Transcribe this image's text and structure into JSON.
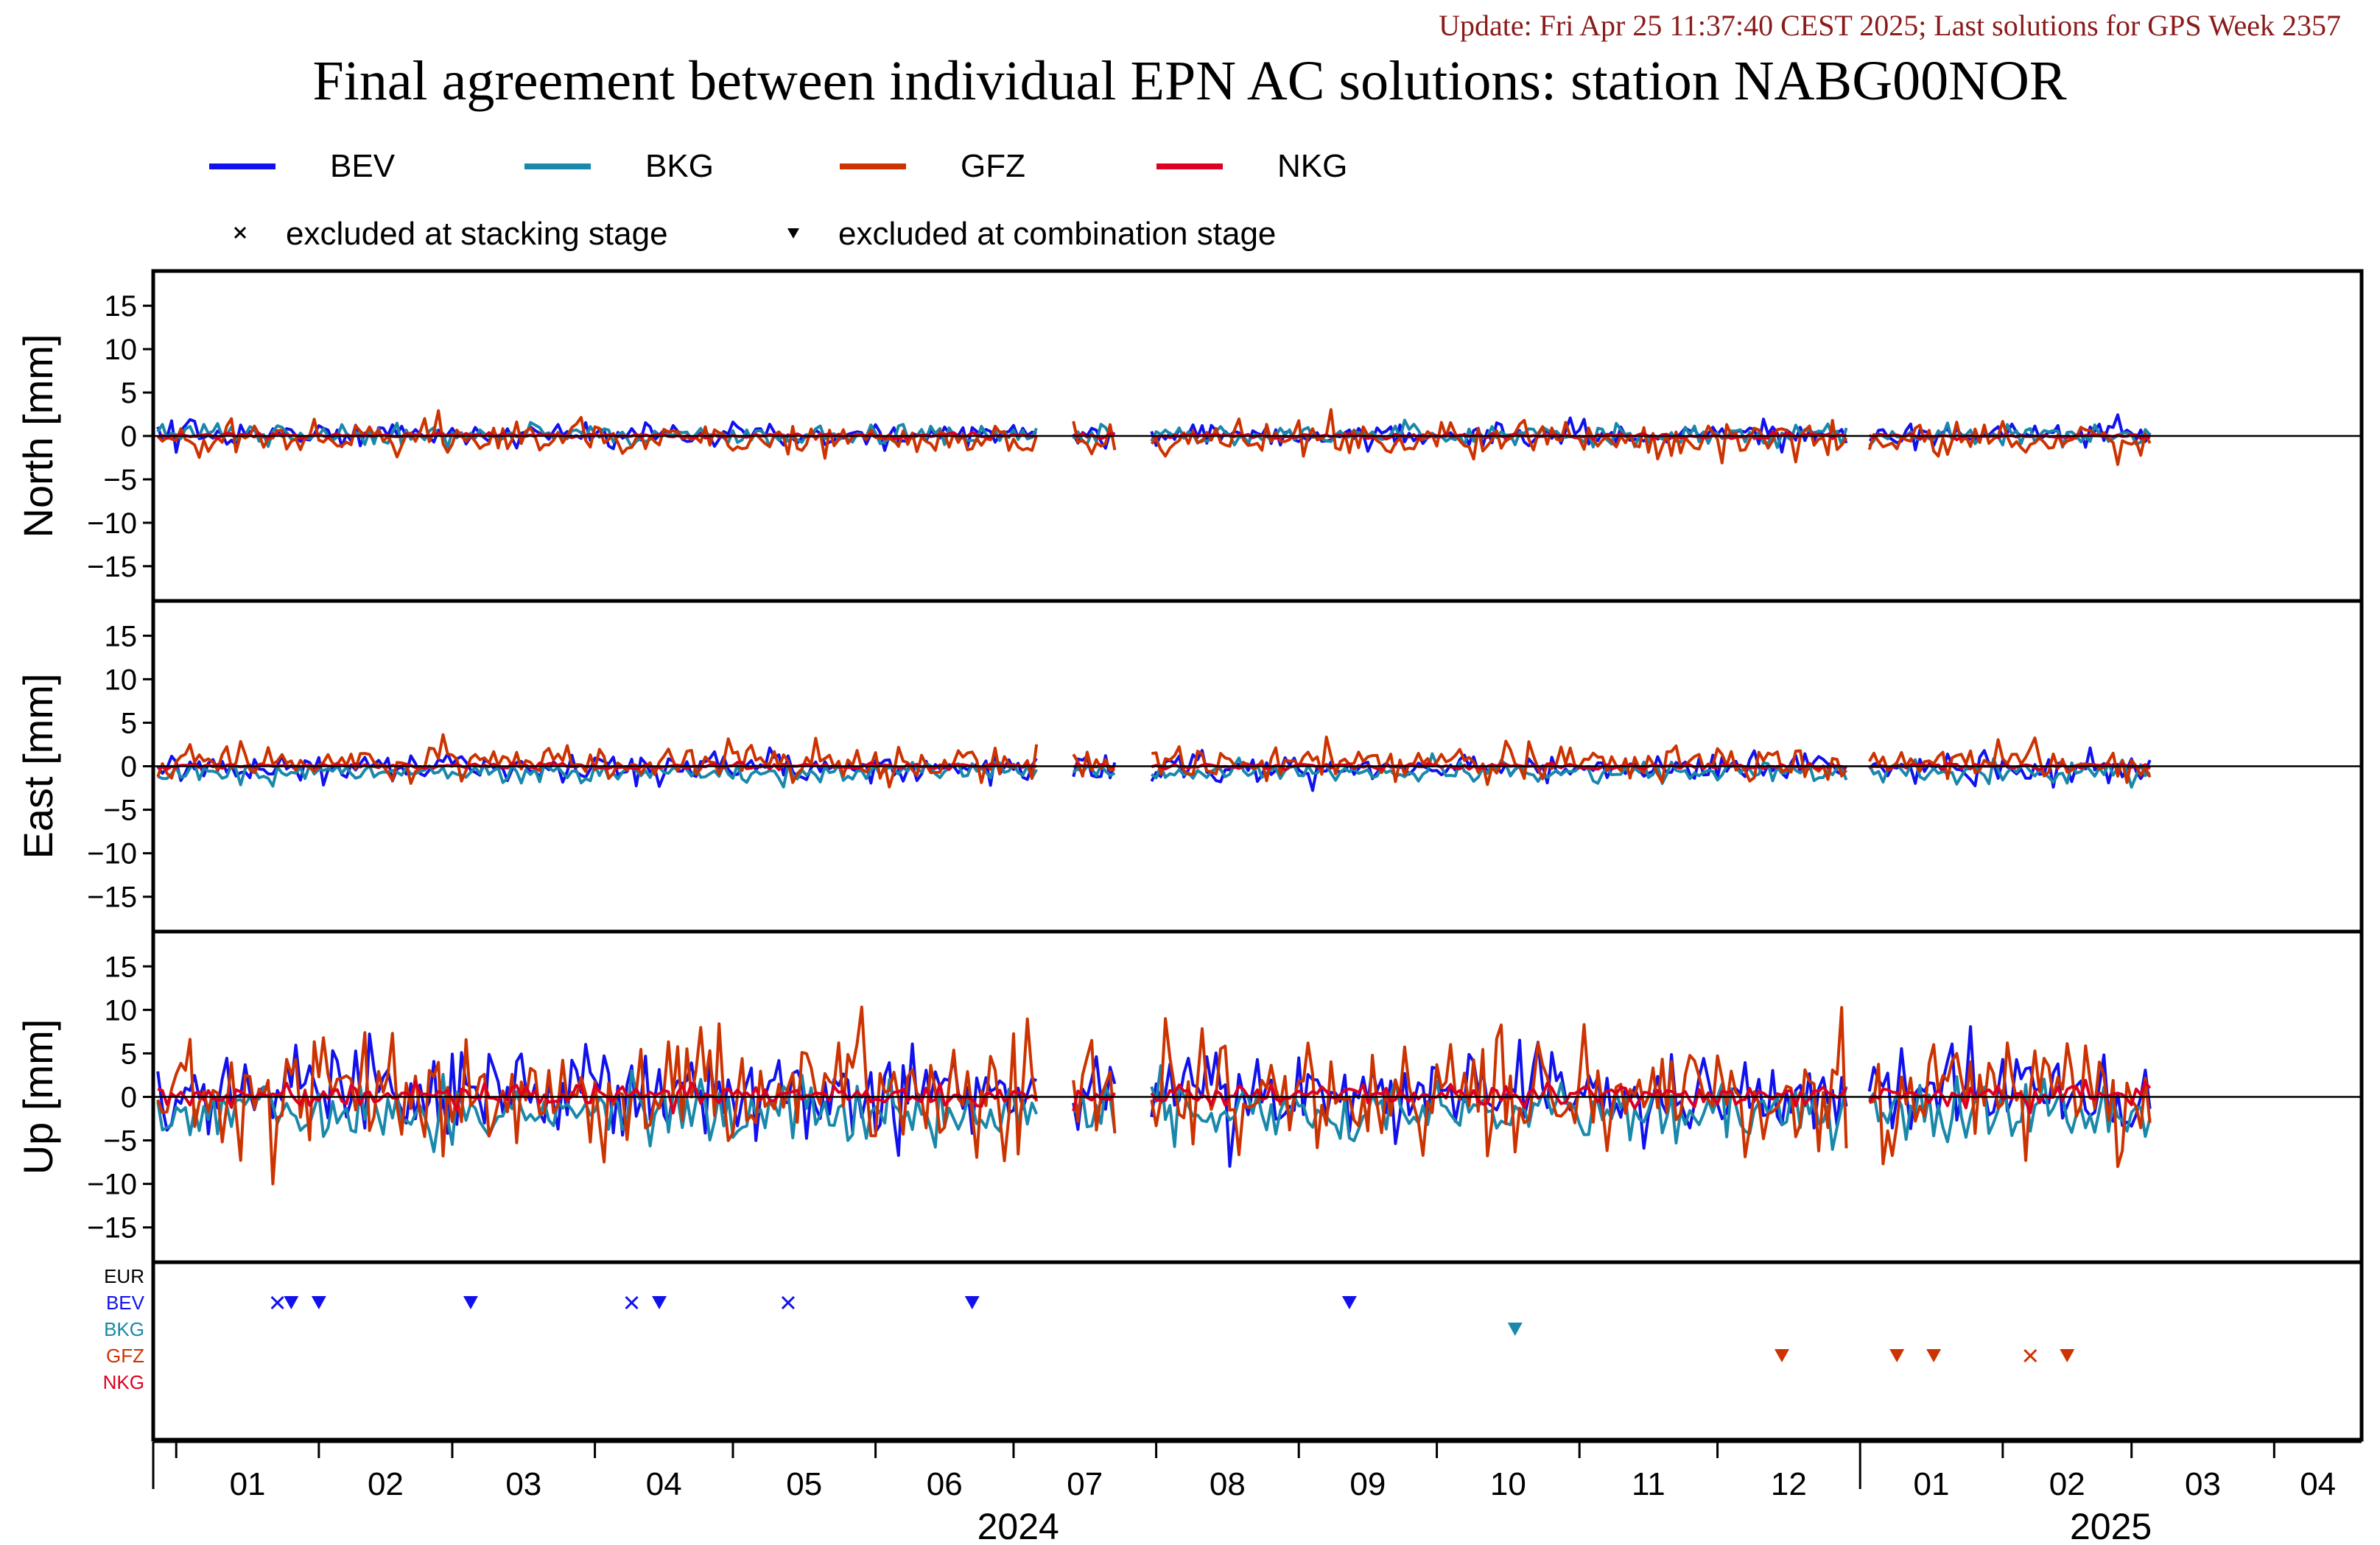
{
  "header": {
    "update": "Update: Fri Apr 25 11:37:40 CEST 2025; Last solutions for GPS Week 2357",
    "title": "Final agreement between individual EPN AC solutions: station NABG00NOR"
  },
  "legend": {
    "series": [
      {
        "name": "BEV",
        "color": "#1111ee"
      },
      {
        "name": "BKG",
        "color": "#1a88aa"
      },
      {
        "name": "GFZ",
        "color": "#cc3300"
      },
      {
        "name": "NKG",
        "color": "#dd0022"
      }
    ],
    "stacking_label": "excluded at stacking stage",
    "combination_label": "excluded at combination stage"
  },
  "chart_data": {
    "type": "line",
    "x_range": [
      "2023-12-27",
      "2025-04-20"
    ],
    "x_ticks": {
      "months": [
        "01",
        "02",
        "03",
        "04",
        "05",
        "06",
        "07",
        "08",
        "09",
        "10",
        "11",
        "12",
        "01",
        "02",
        "03",
        "04"
      ],
      "month_dates": [
        "2024-01",
        "2024-02",
        "2024-03",
        "2024-04",
        "2024-05",
        "2024-06",
        "2024-07",
        "2024-08",
        "2024-09",
        "2024-10",
        "2024-11",
        "2024-12",
        "2025-01",
        "2025-02",
        "2025-03",
        "2025-04"
      ],
      "years": [
        "2024",
        "2025"
      ]
    },
    "data_end": "2025-03-05",
    "gaps": [
      [
        "2024-07-07",
        "2024-07-13"
      ],
      [
        "2024-07-24",
        "2024-07-30"
      ],
      [
        "2024-12-30",
        "2025-01-02"
      ]
    ],
    "y_ticks": [
      15,
      10,
      5,
      0,
      -5,
      -10,
      -15
    ],
    "ylim": [
      -19,
      19
    ],
    "panels": [
      {
        "component": "North",
        "ylabel": "North [mm]",
        "series": [
          {
            "name": "BEV",
            "mean": 0.2,
            "noise_sd": 0.7
          },
          {
            "name": "BKG",
            "mean": 0.1,
            "noise_sd": 0.6
          },
          {
            "name": "GFZ",
            "mean": -0.4,
            "noise_sd": 1.0
          },
          {
            "name": "NKG",
            "mean": 0.0,
            "noise_sd": 0.15
          }
        ]
      },
      {
        "component": "East",
        "ylabel": "East [mm]",
        "series": [
          {
            "name": "BEV",
            "mean": -0.2,
            "noise_sd": 0.8
          },
          {
            "name": "BKG",
            "mean": -0.6,
            "noise_sd": 0.6
          },
          {
            "name": "GFZ",
            "mean": 0.4,
            "noise_sd": 1.0
          },
          {
            "name": "NKG",
            "mean": 0.0,
            "noise_sd": 0.15
          }
        ]
      },
      {
        "component": "Up",
        "ylabel": "Up [mm]",
        "series": [
          {
            "name": "BEV",
            "mean": 0.5,
            "noise_sd": 2.6
          },
          {
            "name": "BKG",
            "mean": -1.8,
            "noise_sd": 1.8
          },
          {
            "name": "GFZ",
            "mean": 0.6,
            "noise_sd": 3.4
          },
          {
            "name": "NKG",
            "mean": 0.2,
            "noise_sd": 0.6
          }
        ]
      }
    ],
    "exclusion_rows": [
      "EUR",
      "BEV",
      "BKG",
      "GFZ",
      "NKG"
    ],
    "exclusions": [
      {
        "row": "BEV",
        "date": "2024-01-23",
        "kind": "stacking"
      },
      {
        "row": "BEV",
        "date": "2024-01-26",
        "kind": "combination"
      },
      {
        "row": "BEV",
        "date": "2024-02-01",
        "kind": "combination"
      },
      {
        "row": "BEV",
        "date": "2024-03-05",
        "kind": "combination"
      },
      {
        "row": "BEV",
        "date": "2024-04-09",
        "kind": "stacking"
      },
      {
        "row": "BEV",
        "date": "2024-04-15",
        "kind": "combination"
      },
      {
        "row": "BEV",
        "date": "2024-05-13",
        "kind": "stacking"
      },
      {
        "row": "BEV",
        "date": "2024-06-22",
        "kind": "combination"
      },
      {
        "row": "BEV",
        "date": "2024-09-12",
        "kind": "combination"
      },
      {
        "row": "BKG",
        "date": "2024-10-18",
        "kind": "combination"
      },
      {
        "row": "GFZ",
        "date": "2024-12-15",
        "kind": "combination"
      },
      {
        "row": "GFZ",
        "date": "2025-01-09",
        "kind": "combination"
      },
      {
        "row": "GFZ",
        "date": "2025-01-17",
        "kind": "combination"
      },
      {
        "row": "GFZ",
        "date": "2025-02-07",
        "kind": "stacking"
      },
      {
        "row": "GFZ",
        "date": "2025-02-15",
        "kind": "combination"
      }
    ]
  }
}
